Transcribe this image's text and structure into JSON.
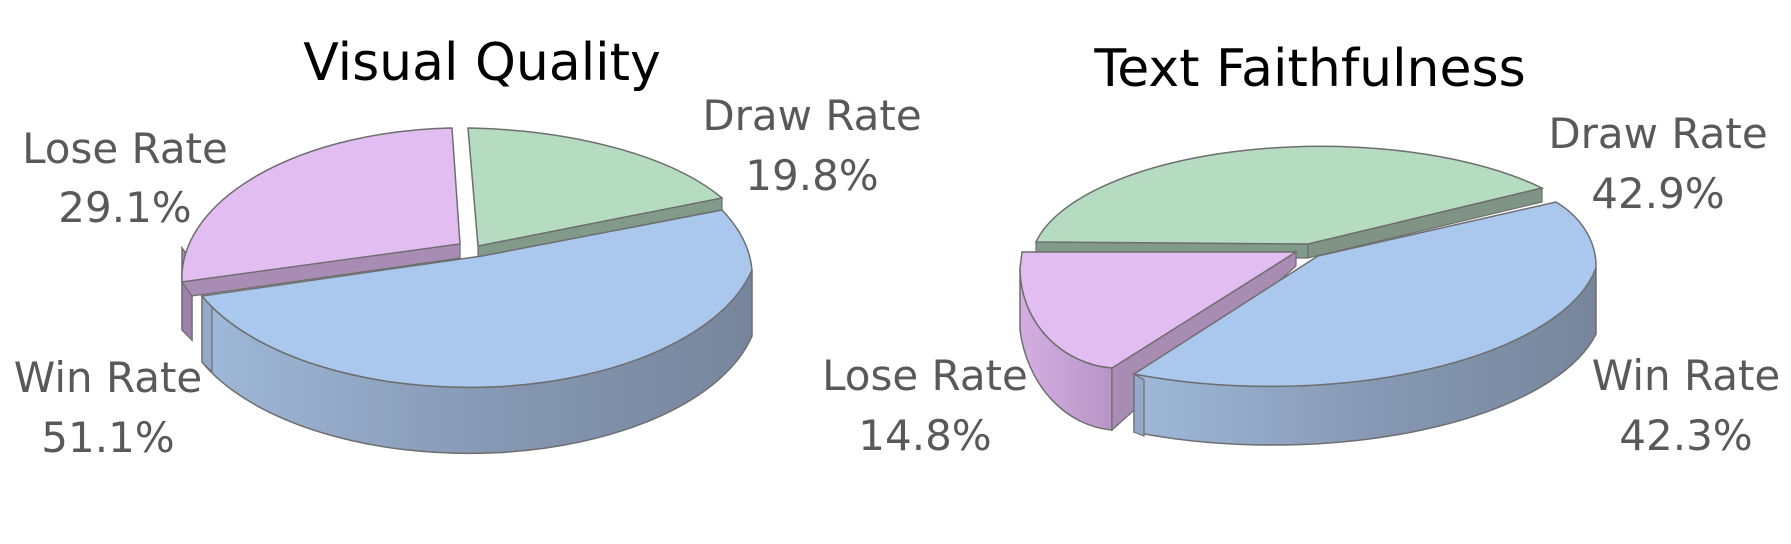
{
  "colors": {
    "win": "#aac8ee",
    "lose": "#e2bdf1",
    "draw": "#b5dbc1",
    "outline": "#6e6e6e",
    "label": "#595959",
    "title": "#000000"
  },
  "chart_data": [
    {
      "type": "pie",
      "title": "Visual Quality",
      "slices": [
        {
          "name": "Win Rate",
          "value": 51.1,
          "label": "51.1%",
          "color": "#aac8ee",
          "exploded": false
        },
        {
          "name": "Lose Rate",
          "value": 29.1,
          "label": "29.1%",
          "color": "#e2bdf1",
          "exploded": true
        },
        {
          "name": "Draw Rate",
          "value": 19.8,
          "label": "19.8%",
          "color": "#b5dbc1",
          "exploded": true
        }
      ]
    },
    {
      "type": "pie",
      "title": "Text Faithfulness",
      "slices": [
        {
          "name": "Draw Rate",
          "value": 42.9,
          "label": "42.9%",
          "color": "#b5dbc1",
          "exploded": true
        },
        {
          "name": "Win Rate",
          "value": 42.3,
          "label": "42.3%",
          "color": "#aac8ee",
          "exploded": true
        },
        {
          "name": "Lose Rate",
          "value": 14.8,
          "label": "14.8%",
          "color": "#e2bdf1",
          "exploded": true
        }
      ]
    }
  ]
}
